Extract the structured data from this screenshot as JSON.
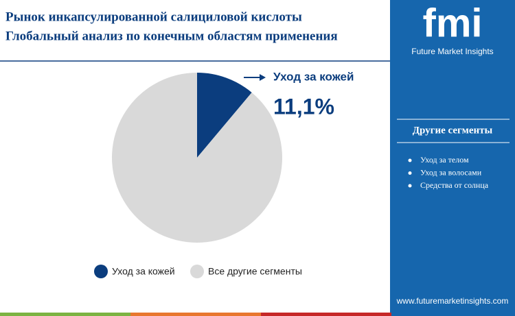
{
  "chart_data": {
    "type": "pie",
    "title": "Рынок инкапсулированной салициловой кислоты",
    "subtitle": "Глобальный анализ по конечным областям применения",
    "categories": [
      "Уход за кожей",
      "Все другие сегменты"
    ],
    "values": [
      11.1,
      88.9
    ],
    "value_labels": [
      "11,1%",
      null
    ],
    "colors": [
      "#0b3d7e",
      "#d9d9d9"
    ]
  },
  "sidebar": {
    "logo": "fmi",
    "brand": "Future Market Insights",
    "heading": "Другие сегменты",
    "items": [
      "Уход за телом",
      "Уход за волосами",
      "Средства от солнца"
    ],
    "url": "www.futuremarketinsights.com"
  }
}
